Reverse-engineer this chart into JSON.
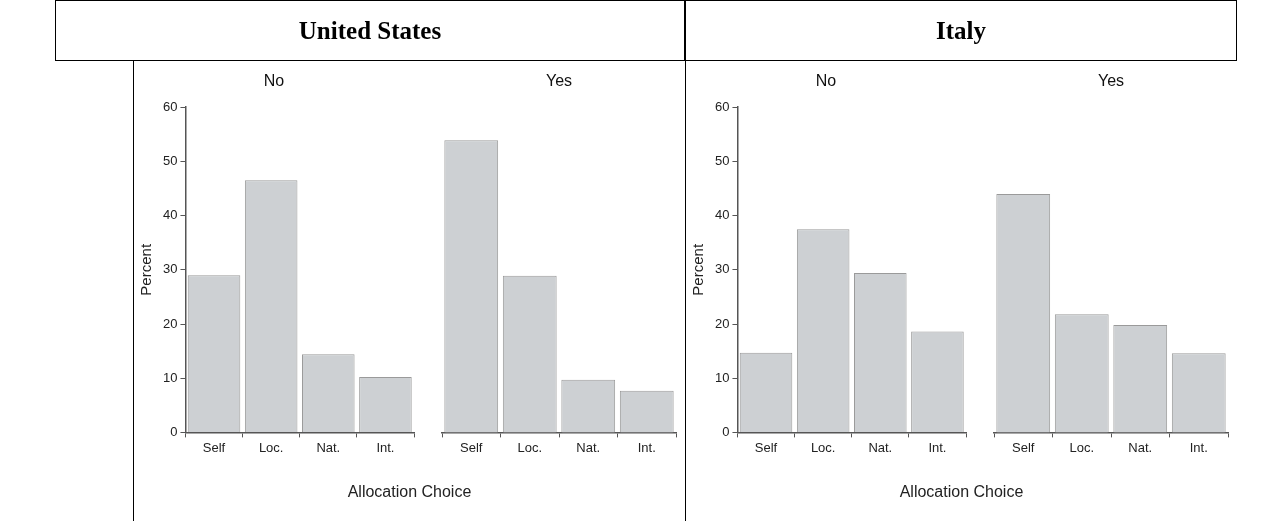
{
  "chart_data": [
    {
      "type": "bar",
      "title": "United States",
      "subtitle": "No",
      "xlabel": "Allocation Choice",
      "ylabel": "Percent",
      "categories": [
        "Self",
        "Loc.",
        "Nat.",
        "Int."
      ],
      "values": [
        29.0,
        46.5,
        14.4,
        10.2
      ],
      "color": "#cdd0d3",
      "ylim": [
        0,
        60
      ],
      "yticks": [
        0,
        10,
        20,
        30,
        40,
        50,
        60
      ],
      "grid": false
    },
    {
      "type": "bar",
      "subtitle": "Yes",
      "categories": [
        "Self",
        "Loc.",
        "Nat.",
        "Int."
      ],
      "values": [
        53.9,
        28.9,
        9.7,
        7.7
      ],
      "color": "#cdd0d3",
      "ylim": [
        0,
        60
      ],
      "tick_labels": "x",
      "grid": false
    },
    {
      "type": "bar",
      "title": "Italy",
      "subtitle": "No",
      "xlabel": "Allocation Choice",
      "ylabel": "Percent",
      "categories": [
        "Self",
        "Loc.",
        "Nat.",
        "Int."
      ],
      "values": [
        14.7,
        37.5,
        29.4,
        18.6
      ],
      "color": "#cdd0d3",
      "ylim": [
        0,
        60
      ],
      "yticks": [
        0,
        10,
        20,
        30,
        40,
        50,
        60
      ],
      "grid": false
    },
    {
      "type": "bar",
      "subtitle": "Yes",
      "categories": [
        "Self",
        "Loc.",
        "Nat.",
        "Int."
      ],
      "values": [
        44.0,
        21.8,
        19.8,
        14.6
      ],
      "color": "#cdd0d3",
      "ylim": [
        0,
        60
      ],
      "tick_labels": "x",
      "grid": false
    }
  ]
}
